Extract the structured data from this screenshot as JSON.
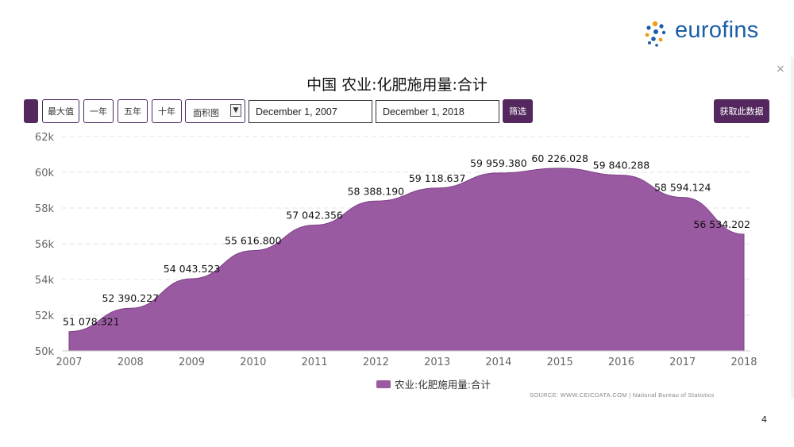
{
  "brand": {
    "logo_text": "eurofins"
  },
  "title": "中国 农业:化肥施用量:合计",
  "controls": {
    "max_label": "最大值",
    "one_year_label": "一年",
    "five_year_label": "五年",
    "ten_year_label": "十年",
    "chart_type_label": "面积图",
    "start_date": "December 1, 2007",
    "end_date": "December 1, 2018",
    "filter_label": "筛选",
    "get_data_label": "获取此数据"
  },
  "close_glyph": "×",
  "source_text": "SOURCE: WWW.CEICDATA.COM | National Bureau of Statistics",
  "page_number": "4",
  "colors": {
    "area": "#9a5aa1",
    "area_stroke": "#7d4187",
    "brand_purple": "#54285e",
    "logo_blue": "#1a5ea8"
  },
  "chart_data": {
    "type": "area",
    "title": "中国 农业:化肥施用量:合计",
    "x": [
      "2007",
      "2008",
      "2009",
      "2010",
      "2011",
      "2012",
      "2013",
      "2014",
      "2015",
      "2016",
      "2017",
      "2018"
    ],
    "y_ticks": [
      "50k",
      "52k",
      "54k",
      "56k",
      "58k",
      "60k",
      "62k"
    ],
    "ylim": [
      50000,
      62000
    ],
    "grid": true,
    "legend_position": "bottom",
    "series": [
      {
        "name": "农业:化肥施用量:合计",
        "values": [
          51078.321,
          52390.227,
          54043.523,
          55616.8,
          57042.356,
          58388.19,
          59118.637,
          59959.38,
          60226.028,
          59840.288,
          58594.124,
          56534.202
        ],
        "labels": [
          "51 078.321",
          "52 390.227",
          "54 043.523",
          "55 616.800",
          "57 042.356",
          "58 388.190",
          "59 118.637",
          "59 959.380",
          "60 226.028",
          "59 840.288",
          "58 594.124",
          "56 534.202"
        ]
      }
    ]
  }
}
